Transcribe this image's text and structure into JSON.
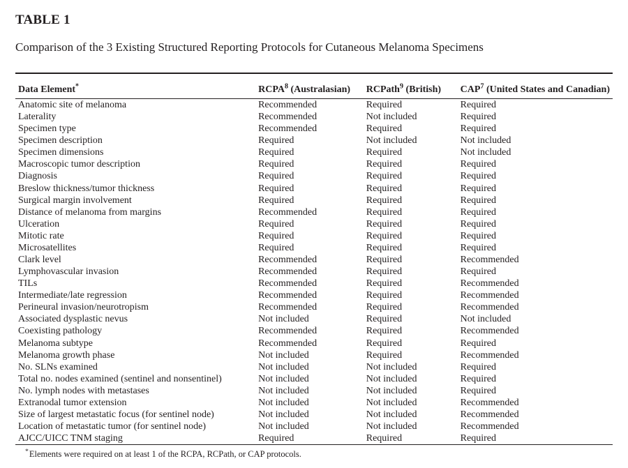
{
  "table_label": "TABLE 1",
  "caption": "Comparison of the 3 Existing Structured Reporting Protocols for Cutaneous Melanoma Specimens",
  "headers": {
    "element": {
      "text": "Data Element",
      "sup": "*"
    },
    "rcpa": {
      "text": "RCPA",
      "sup": "8",
      "paren": " (Australasian)"
    },
    "rcpath": {
      "text": "RCPath",
      "sup": "9",
      "paren": " (British)"
    },
    "cap": {
      "text": "CAP",
      "sup": "7",
      "paren": " (United States and Canadian)"
    }
  },
  "rows": [
    {
      "element": "Anatomic site of melanoma",
      "rcpa": "Recommended",
      "rcpath": "Required",
      "cap": "Required"
    },
    {
      "element": "Laterality",
      "rcpa": "Recommended",
      "rcpath": "Not included",
      "cap": "Required"
    },
    {
      "element": "Specimen type",
      "rcpa": "Recommended",
      "rcpath": "Required",
      "cap": "Required"
    },
    {
      "element": "Specimen description",
      "rcpa": "Required",
      "rcpath": "Not included",
      "cap": "Not included"
    },
    {
      "element": "Specimen dimensions",
      "rcpa": "Required",
      "rcpath": "Required",
      "cap": "Not included"
    },
    {
      "element": "Macroscopic tumor description",
      "rcpa": "Required",
      "rcpath": "Required",
      "cap": "Required"
    },
    {
      "element": "Diagnosis",
      "rcpa": "Required",
      "rcpath": "Required",
      "cap": "Required"
    },
    {
      "element": "Breslow thickness/tumor thickness",
      "rcpa": "Required",
      "rcpath": "Required",
      "cap": "Required"
    },
    {
      "element": "Surgical margin involvement",
      "rcpa": "Required",
      "rcpath": "Required",
      "cap": "Required"
    },
    {
      "element": "Distance of melanoma from margins",
      "rcpa": "Recommended",
      "rcpath": "Required",
      "cap": "Required"
    },
    {
      "element": "Ulceration",
      "rcpa": "Required",
      "rcpath": "Required",
      "cap": "Required"
    },
    {
      "element": "Mitotic rate",
      "rcpa": "Required",
      "rcpath": "Required",
      "cap": "Required"
    },
    {
      "element": "Microsatellites",
      "rcpa": "Required",
      "rcpath": "Required",
      "cap": "Required"
    },
    {
      "element": "Clark level",
      "rcpa": "Recommended",
      "rcpath": "Required",
      "cap": "Recommended"
    },
    {
      "element": "Lymphovascular invasion",
      "rcpa": "Recommended",
      "rcpath": "Required",
      "cap": "Required"
    },
    {
      "element": "TILs",
      "rcpa": "Recommended",
      "rcpath": "Required",
      "cap": "Recommended"
    },
    {
      "element": "Intermediate/late regression",
      "rcpa": "Recommended",
      "rcpath": "Required",
      "cap": "Recommended"
    },
    {
      "element": "Perineural invasion/neurotropism",
      "rcpa": "Recommended",
      "rcpath": "Required",
      "cap": "Recommended"
    },
    {
      "element": "Associated dysplastic nevus",
      "rcpa": "Not included",
      "rcpath": "Required",
      "cap": "Not included"
    },
    {
      "element": "Coexisting pathology",
      "rcpa": "Recommended",
      "rcpath": "Required",
      "cap": "Recommended"
    },
    {
      "element": "Melanoma subtype",
      "rcpa": "Recommended",
      "rcpath": "Required",
      "cap": "Required"
    },
    {
      "element": "Melanoma growth phase",
      "rcpa": "Not included",
      "rcpath": "Required",
      "cap": "Recommended"
    },
    {
      "element": "No. SLNs examined",
      "rcpa": "Not included",
      "rcpath": "Not included",
      "cap": "Required"
    },
    {
      "element": "Total no. nodes examined (sentinel and nonsentinel)",
      "rcpa": "Not included",
      "rcpath": "Not included",
      "cap": "Required"
    },
    {
      "element": "No. lymph nodes with metastases",
      "rcpa": "Not included",
      "rcpath": "Not included",
      "cap": "Required"
    },
    {
      "element": "Extranodal tumor extension",
      "rcpa": "Not included",
      "rcpath": "Not included",
      "cap": "Recommended"
    },
    {
      "element": "Size of largest metastatic focus (for sentinel node)",
      "rcpa": "Not included",
      "rcpath": "Not included",
      "cap": "Recommended"
    },
    {
      "element": "Location of metastatic tumor (for sentinel node)",
      "rcpa": "Not included",
      "rcpath": "Not included",
      "cap": "Recommended"
    },
    {
      "element": "AJCC/UICC TNM staging",
      "rcpa": "Required",
      "rcpath": "Required",
      "cap": "Required"
    }
  ],
  "footnote": "Elements were required on at least 1 of the RCPA, RCPath, or CAP protocols."
}
